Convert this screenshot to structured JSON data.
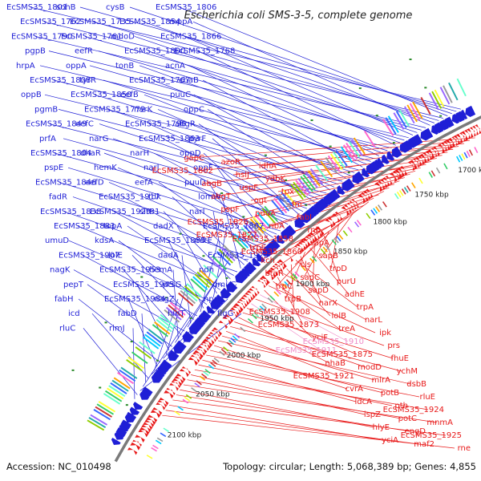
{
  "title": "Escherichia coli SMS-3-5, complete genome",
  "footer": {
    "accession": "Accession: NC_010498",
    "summary": "Topology: circular; Length: 5,068,389 bp; Genes: 4,855"
  },
  "colors": {
    "forward": "#1f1fd6",
    "reverse": "#e81a1a",
    "pseudo": "#f08cc8",
    "backbone": "#7a7a7a",
    "tick_dot": "#2a8a2a",
    "title": "#222222"
  },
  "ticks": [
    {
      "label": "1700 kbp"
    },
    {
      "label": "1750 kbp"
    },
    {
      "label": "1800 kbp"
    },
    {
      "label": "1850 kbp"
    },
    {
      "label": "1900 kbp"
    },
    {
      "label": "1950 kbp"
    },
    {
      "label": "2000 kbp"
    },
    {
      "label": "2050 kbp"
    },
    {
      "label": "2100 kbp"
    }
  ],
  "forward_labels": [
    {
      "text": "EcSMS35_1801"
    },
    {
      "text": "sohB"
    },
    {
      "text": "cysB"
    },
    {
      "text": "EcSMS35_1806"
    },
    {
      "text": "EcSMS35_1762"
    },
    {
      "text": "EcSMS35_1735"
    },
    {
      "text": "EcSMS35_1854"
    },
    {
      "text": "mppA"
    },
    {
      "text": "EcSMS35_1790"
    },
    {
      "text": "EcSMS35_1761"
    },
    {
      "text": "mdoD"
    },
    {
      "text": "EcSMS35_1866"
    },
    {
      "text": "pgpB"
    },
    {
      "text": "eefR"
    },
    {
      "text": "EcSMS35_1800"
    },
    {
      "text": "EcSMS35_1768"
    },
    {
      "text": "hrpA"
    },
    {
      "text": "oppA"
    },
    {
      "text": "tonB"
    },
    {
      "text": "acnA"
    },
    {
      "text": "EcSMS35_1808"
    },
    {
      "text": "tyrR"
    },
    {
      "text": "EcSMS35_1767"
    },
    {
      "text": "chaB"
    },
    {
      "text": "oppB"
    },
    {
      "text": "EcSMS35_1850"
    },
    {
      "text": "eefB"
    },
    {
      "text": "puuC"
    },
    {
      "text": "pgmB"
    },
    {
      "text": "EcSMS35_1772"
    },
    {
      "text": "narK"
    },
    {
      "text": "oppC"
    },
    {
      "text": "EcSMS35_1849"
    },
    {
      "text": "eefC"
    },
    {
      "text": "EcSMS35_1796"
    },
    {
      "text": "abgR"
    },
    {
      "text": "prfA"
    },
    {
      "text": "narG"
    },
    {
      "text": "EcSMS35_1863"
    },
    {
      "text": "pyrF"
    },
    {
      "text": "EcSMS35_1804"
    },
    {
      "text": "dhaR"
    },
    {
      "text": "narH"
    },
    {
      "text": "oppD"
    },
    {
      "text": "pspE"
    },
    {
      "text": "hemK"
    },
    {
      "text": "narJ"
    },
    {
      "text": "oppF"
    },
    {
      "text": "EcSMS35_1846"
    },
    {
      "text": "eefD"
    },
    {
      "text": "eefA"
    },
    {
      "text": "puuD"
    },
    {
      "text": "fadR"
    },
    {
      "text": "EcSMS35_1917"
    },
    {
      "text": "tdk"
    },
    {
      "text": "lomW"
    },
    {
      "text": "EcSMS35_1838"
    },
    {
      "text": "EcSMS35_1929"
    },
    {
      "text": "sirB1"
    },
    {
      "text": "narI"
    },
    {
      "text": "EcSMS35_1883"
    },
    {
      "text": "topA"
    },
    {
      "text": "dadX"
    },
    {
      "text": "EcSMS35_1867"
    },
    {
      "text": "umuD"
    },
    {
      "text": "kdsA"
    },
    {
      "text": "EcSMS35_1885"
    },
    {
      "text": "mltE"
    },
    {
      "text": "EcSMS35_1907"
    },
    {
      "text": "lolE"
    },
    {
      "text": "dadA"
    },
    {
      "text": "EcSMS35_1920"
    },
    {
      "text": "nagK"
    },
    {
      "text": "EcSMS35_1953"
    },
    {
      "text": "hemA"
    },
    {
      "text": "ndh"
    },
    {
      "text": "pepT"
    },
    {
      "text": "EcSMS35_1945"
    },
    {
      "text": "ptsG"
    },
    {
      "text": "umuC"
    },
    {
      "text": "fabH"
    },
    {
      "text": "EcSMS35_1984"
    },
    {
      "text": "nagZ"
    },
    {
      "text": "npdA"
    },
    {
      "text": "icd"
    },
    {
      "text": "fabD"
    },
    {
      "text": "hinT"
    },
    {
      "text": "flgG"
    },
    {
      "text": "rluC"
    },
    {
      "text": "rimJ"
    }
  ],
  "reverse_labels": [
    {
      "text": "gapC"
    },
    {
      "text": "azoR"
    },
    {
      "text": "idhA"
    },
    {
      "text": "EcSMS35_1802"
    },
    {
      "text": "hslJ"
    },
    {
      "text": "ydbK"
    },
    {
      "text": "abgB"
    },
    {
      "text": "uspF"
    },
    {
      "text": "tpx"
    },
    {
      "text": "abgT"
    },
    {
      "text": "ogt"
    },
    {
      "text": "fnr"
    },
    {
      "text": "pspF"
    },
    {
      "text": "puuA"
    },
    {
      "text": "fabI"
    },
    {
      "text": "EcSMS35_1826"
    },
    {
      "text": "ribA"
    },
    {
      "text": "rnb"
    },
    {
      "text": "EcSMS35_1827"
    },
    {
      "text": "EcSMS35_1858"
    },
    {
      "text": "sapA"
    },
    {
      "text": "trpE"
    },
    {
      "text": "EcSMS35_1860"
    },
    {
      "text": "sapB"
    },
    {
      "text": "kch"
    },
    {
      "text": "cls"
    },
    {
      "text": "trpD"
    },
    {
      "text": "btuR"
    },
    {
      "text": "sapC"
    },
    {
      "text": "purU"
    },
    {
      "text": "trpC"
    },
    {
      "text": "sapD"
    },
    {
      "text": "adhE"
    },
    {
      "text": "trpB"
    },
    {
      "text": "narX"
    },
    {
      "text": "trpA"
    },
    {
      "text": "EcSMS35_1908"
    },
    {
      "text": "lolB"
    },
    {
      "text": "narL"
    },
    {
      "text": "EcSMS35_1873"
    },
    {
      "text": "treA"
    },
    {
      "text": "ipk"
    },
    {
      "text": "yciF"
    },
    {
      "text": "EcSMS35_1910",
      "pseudo": true
    },
    {
      "text": "prs"
    },
    {
      "text": "EcSMS35_1911",
      "pseudo": true
    },
    {
      "text": "EcSMS35_1875"
    },
    {
      "text": "fhuE"
    },
    {
      "text": "nhaB"
    },
    {
      "text": "modD"
    },
    {
      "text": "ychM"
    },
    {
      "text": "EcSMS35_1921"
    },
    {
      "text": "mlrA"
    },
    {
      "text": "dsbB"
    },
    {
      "text": "cvrA"
    },
    {
      "text": "potB"
    },
    {
      "text": "rluE"
    },
    {
      "text": "ldcA"
    },
    {
      "text": "pth"
    },
    {
      "text": "EcSMS35_1924"
    },
    {
      "text": "ispZ"
    },
    {
      "text": "potC"
    },
    {
      "text": "mnmA"
    },
    {
      "text": "hlyE"
    },
    {
      "text": "engD"
    },
    {
      "text": "EcSMS35_1925"
    },
    {
      "text": "yciA"
    },
    {
      "text": "maf2"
    },
    {
      "text": "rne"
    }
  ]
}
